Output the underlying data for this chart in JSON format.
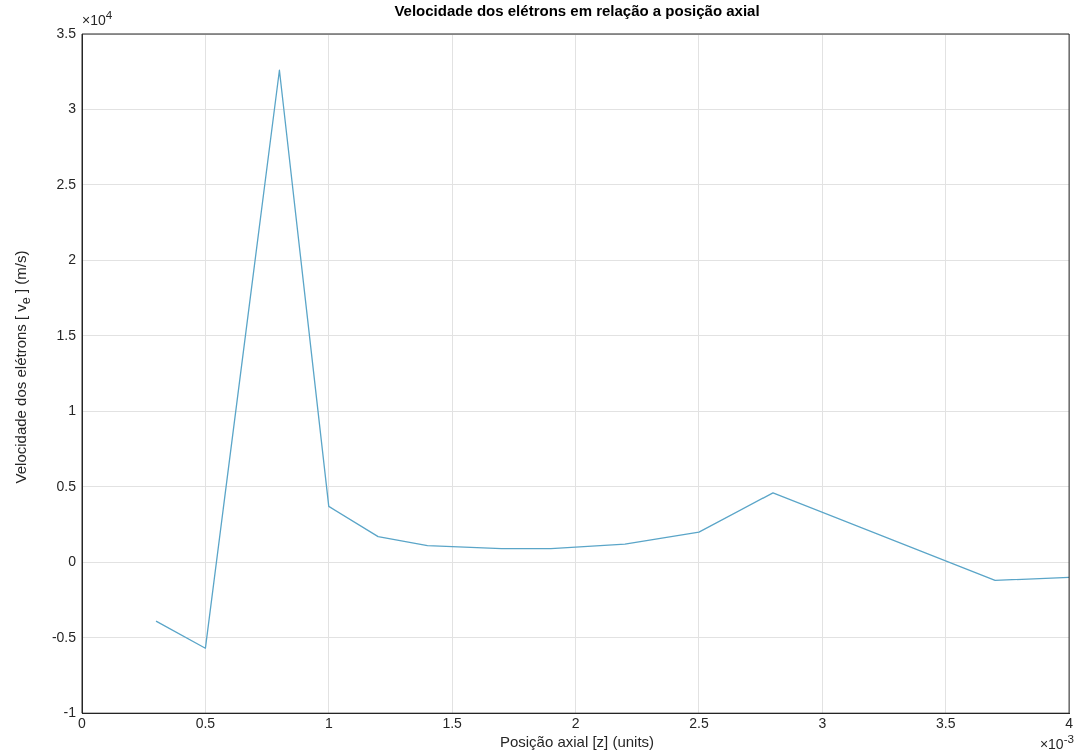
{
  "chart_data": {
    "type": "line",
    "title": "Velocidade dos elétrons em relação a posição axial",
    "xlabel": "Posição axial [z] (units)",
    "ylabel": "Velocidade dos elétrons [ v$_{e}$ ] (m/s)",
    "annotations": [
      "×10$^{4}$",
      "×10$^{-3}$"
    ],
    "x": [
      0.3,
      0.5,
      0.8,
      1.0,
      1.2,
      1.4,
      1.7,
      1.9,
      2.2,
      2.5,
      2.8,
      3.7,
      4.0
    ],
    "series": [
      {
        "color": "#5aa5c8",
        "values": [
          -0.39,
          -0.57,
          3.26,
          0.37,
          0.17,
          0.11,
          0.09,
          0.09,
          0.12,
          0.2,
          0.46,
          -0.12,
          -0.1
        ]
      }
    ],
    "xlim": [
      0,
      4
    ],
    "xticks": [
      0,
      0.5,
      1,
      1.5,
      2,
      2.5,
      3,
      3.5,
      4
    ],
    "ylim": [
      -1,
      3.5
    ],
    "yticks": [
      -1,
      -0.5,
      0,
      0.5,
      1,
      1.5,
      2,
      2.5,
      3,
      3.5
    ],
    "grid": true,
    "legend": false,
    "marker": "none",
    "line_style": "solid"
  }
}
